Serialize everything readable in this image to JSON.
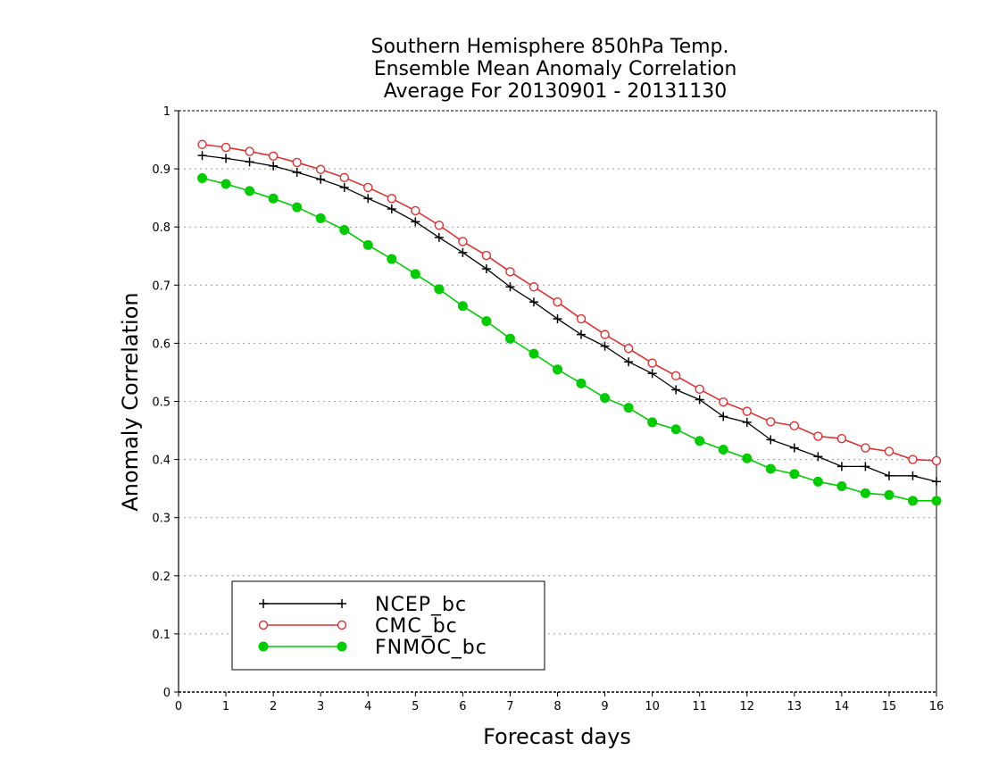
{
  "chart_data": {
    "type": "line",
    "title": [
      "Southern Hemisphere 850hPa Temp.",
      "Ensemble Mean Anomaly Correlation",
      "Average For 20130901 - 20131130"
    ],
    "xlabel": "Forecast days",
    "ylabel": "Anomaly Correlation",
    "xlim": [
      0,
      16
    ],
    "ylim": [
      0,
      1
    ],
    "xticks": [
      0,
      1,
      2,
      3,
      4,
      5,
      6,
      7,
      8,
      9,
      10,
      11,
      12,
      13,
      14,
      15,
      16
    ],
    "yticks": [
      0,
      0.1,
      0.2,
      0.3,
      0.4,
      0.5,
      0.6,
      0.7,
      0.8,
      0.9,
      1
    ],
    "ytick_labels": [
      "0",
      "0.1",
      "0.2",
      "0.3",
      "0.4",
      "0.5",
      "0.6",
      "0.7",
      "0.8",
      "0.9",
      "1"
    ],
    "grid": "horizontal dotted",
    "legend_position": "bottom-left",
    "x": [
      0.5,
      1,
      1.5,
      2,
      2.5,
      3,
      3.5,
      4,
      4.5,
      5,
      5.5,
      6,
      6.5,
      7,
      7.5,
      8,
      8.5,
      9,
      9.5,
      10,
      10.5,
      11,
      11.5,
      12,
      12.5,
      13,
      13.5,
      14,
      14.5,
      15,
      15.5,
      16
    ],
    "series": [
      {
        "name": "NCEP_bc",
        "color": "#000000",
        "marker": "plus",
        "values": [
          0.923,
          0.918,
          0.912,
          0.905,
          0.894,
          0.882,
          0.868,
          0.849,
          0.831,
          0.809,
          0.782,
          0.756,
          0.728,
          0.697,
          0.671,
          0.642,
          0.615,
          0.595,
          0.568,
          0.548,
          0.52,
          0.503,
          0.474,
          0.464,
          0.434,
          0.42,
          0.405,
          0.388,
          0.388,
          0.372,
          0.372,
          0.362
        ]
      },
      {
        "name": "CMC_bc",
        "color": "#e03030",
        "marker": "open-circle",
        "values": [
          0.942,
          0.937,
          0.93,
          0.922,
          0.911,
          0.899,
          0.885,
          0.868,
          0.849,
          0.828,
          0.803,
          0.775,
          0.751,
          0.723,
          0.697,
          0.671,
          0.642,
          0.615,
          0.591,
          0.566,
          0.544,
          0.521,
          0.499,
          0.483,
          0.465,
          0.458,
          0.44,
          0.436,
          0.42,
          0.414,
          0.4,
          0.398
        ]
      },
      {
        "name": "FNMOC_bc",
        "color": "#00cc00",
        "marker": "filled-circle",
        "values": [
          0.884,
          0.874,
          0.862,
          0.849,
          0.834,
          0.815,
          0.795,
          0.769,
          0.745,
          0.719,
          0.693,
          0.664,
          0.638,
          0.608,
          0.582,
          0.555,
          0.531,
          0.506,
          0.489,
          0.464,
          0.452,
          0.432,
          0.417,
          0.402,
          0.384,
          0.375,
          0.362,
          0.354,
          0.342,
          0.339,
          0.329,
          0.329
        ]
      }
    ]
  }
}
